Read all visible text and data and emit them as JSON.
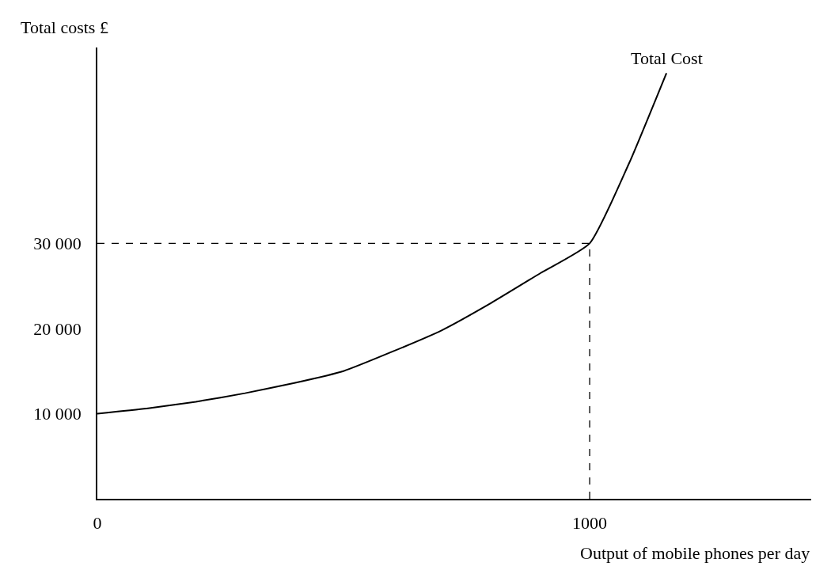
{
  "chart_data": {
    "type": "line",
    "ylabel": "Total costs £",
    "xlabel": "Output of mobile phones per day",
    "series": [
      {
        "name": "Total Cost",
        "color": "#000000",
        "x": [
          0,
          100,
          200,
          300,
          400,
          500,
          600,
          700,
          800,
          900,
          1000,
          1080,
          1156
        ],
        "values": [
          10000,
          10600,
          11400,
          12400,
          13600,
          15000,
          17300,
          19800,
          23000,
          26500,
          30000,
          39400,
          50000
        ]
      }
    ],
    "xlim": [
      0,
      1450
    ],
    "ylim": [
      0,
      53000
    ],
    "xticks": [
      0,
      1000
    ],
    "yticks": [
      {
        "value": 10000,
        "label": "10 000"
      },
      {
        "value": 20000,
        "label": "20 000"
      },
      {
        "value": 30000,
        "label": "30 000"
      }
    ],
    "ref_lines": [
      {
        "axis": "y",
        "value": 30000,
        "color": "#000000",
        "line_style": "dashed"
      },
      {
        "axis": "x",
        "value": 1000,
        "color": "#000000",
        "line_style": "dashed"
      }
    ],
    "legend": false,
    "marker": "none",
    "line_style": "solid"
  }
}
